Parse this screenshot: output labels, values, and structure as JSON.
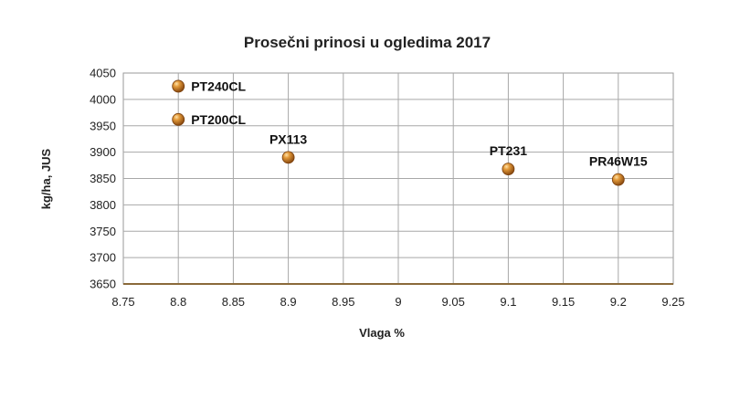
{
  "chart_data": {
    "type": "scatter",
    "title": "Prosečni prinosi u ogledima 2017",
    "xlabel": "Vlaga %",
    "ylabel": "kg/ha, JUS",
    "xlim": [
      8.75,
      9.25
    ],
    "ylim": [
      3650,
      4050
    ],
    "x_ticks": [
      "8.75",
      "8.8",
      "8.85",
      "8.9",
      "8.95",
      "9",
      "9.05",
      "9.1",
      "9.15",
      "9.2",
      "9.25"
    ],
    "y_ticks": [
      "3650",
      "3700",
      "3750",
      "3800",
      "3850",
      "3900",
      "3950",
      "4000",
      "4050"
    ],
    "grid": true,
    "legend": "none",
    "marker_color": "#c8741f",
    "points": [
      {
        "label": "PT240CL",
        "x": 8.8,
        "y": 4025
      },
      {
        "label": "PT200CL",
        "x": 8.8,
        "y": 3962
      },
      {
        "label": "PX113",
        "x": 8.9,
        "y": 3890
      },
      {
        "label": "PT231",
        "x": 9.1,
        "y": 3868
      },
      {
        "label": "PR46W15",
        "x": 9.2,
        "y": 3848
      }
    ]
  }
}
